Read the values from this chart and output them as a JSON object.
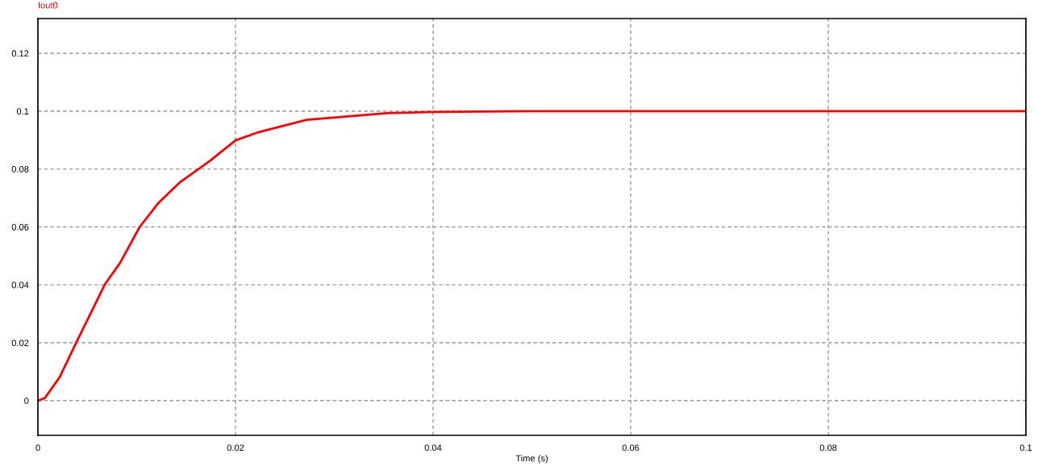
{
  "chart_data": {
    "type": "line",
    "title": "Iout0",
    "xlabel": "Time (s)",
    "x": [
      0,
      0.0007,
      0.0022,
      0.0038,
      0.0053,
      0.0068,
      0.0083,
      0.0103,
      0.0122,
      0.0144,
      0.0174,
      0.02,
      0.0222,
      0.0272,
      0.0353,
      0.04,
      0.05,
      0.06,
      0.07,
      0.08,
      0.09,
      0.1
    ],
    "series": [
      {
        "color": "#ff0000",
        "values": [
          0,
          0.0009,
          0.0081,
          0.0195,
          0.0299,
          0.0403,
          0.0475,
          0.06,
          0.0683,
          0.0755,
          0.0828,
          0.0899,
          0.0926,
          0.097,
          0.0993,
          0.0997,
          0.1,
          0.1,
          0.1,
          0.1,
          0.1,
          0.1
        ]
      }
    ],
    "xlim": [
      0,
      0.1
    ],
    "xticks": [
      0,
      0.02,
      0.04,
      0.06,
      0.08,
      0.1
    ],
    "ylim": [
      -0.012,
      0.132
    ],
    "yticks": [
      0,
      0.02,
      0.04,
      0.06,
      0.08,
      0.1,
      0.12
    ],
    "grid": true,
    "legend": false,
    "marker": "none",
    "line_style": "solid"
  }
}
